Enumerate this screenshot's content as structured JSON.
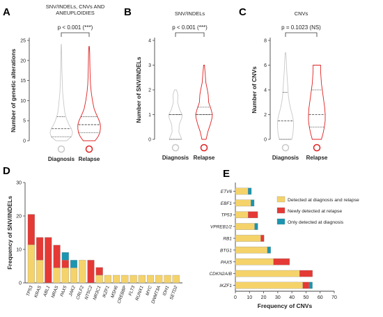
{
  "colors": {
    "diagnosis": "#c8c8c8",
    "relapse": "#e02020",
    "both": "#f5d36a",
    "new": "#e53935",
    "only_dx": "#1b95b0",
    "axis": "#444444"
  },
  "chart_data": [
    {
      "id": "A",
      "type": "violin",
      "panel_label": "A",
      "title": "SNV/INDELs, CNVs AND\nANEUPLOIDIES",
      "pvalue": "p < 0.001 (***)",
      "ylabel": "Number of genetic alterations",
      "ylim": [
        0,
        25
      ],
      "yticks": [
        0,
        5,
        10,
        15,
        20,
        25
      ],
      "groups": [
        "Diagnosis",
        "Relapse"
      ],
      "violins": [
        {
          "group": "Diagnosis",
          "ymax": 24,
          "median": 3,
          "q1": 1,
          "q3": 6,
          "profile": [
            [
              0,
              0.45
            ],
            [
              1,
              0.85
            ],
            [
              2,
              0.95
            ],
            [
              3,
              0.85
            ],
            [
              4,
              0.65
            ],
            [
              5,
              0.5
            ],
            [
              6,
              0.38
            ],
            [
              7,
              0.3
            ],
            [
              8,
              0.25
            ],
            [
              10,
              0.18
            ],
            [
              12,
              0.12
            ],
            [
              14,
              0.09
            ],
            [
              16,
              0.07
            ],
            [
              18,
              0.05
            ],
            [
              20,
              0.04
            ],
            [
              22,
              0.03
            ],
            [
              24,
              0.01
            ]
          ]
        },
        {
          "group": "Relapse",
          "ymax": 23.5,
          "median": 4,
          "q1": 2,
          "q3": 6,
          "profile": [
            [
              0,
              0.5
            ],
            [
              1,
              0.75
            ],
            [
              2,
              0.9
            ],
            [
              3,
              0.95
            ],
            [
              4,
              0.95
            ],
            [
              5,
              0.85
            ],
            [
              6,
              0.7
            ],
            [
              7,
              0.55
            ],
            [
              8,
              0.42
            ],
            [
              10,
              0.28
            ],
            [
              12,
              0.18
            ],
            [
              14,
              0.12
            ],
            [
              16,
              0.09
            ],
            [
              18,
              0.07
            ],
            [
              20,
              0.06
            ],
            [
              22,
              0.05
            ],
            [
              23.5,
              0.02
            ]
          ]
        }
      ]
    },
    {
      "id": "B",
      "type": "violin",
      "panel_label": "B",
      "title": "SNV/INDELs",
      "pvalue": "p < 0.001 (***)",
      "ylabel": "Number of SNV/INDELs",
      "ylim": [
        0,
        4
      ],
      "yticks": [
        0,
        1,
        2,
        3,
        4
      ],
      "groups": [
        "Diagnosis",
        "Relapse"
      ],
      "violins": [
        {
          "group": "Diagnosis",
          "ymax": 2,
          "median": 1,
          "q1": 0,
          "q3": 1,
          "profile": [
            [
              0,
              0.75
            ],
            [
              0.3,
              0.4
            ],
            [
              0.6,
              0.45
            ],
            [
              0.85,
              0.75
            ],
            [
              1,
              0.8
            ],
            [
              1.2,
              0.5
            ],
            [
              1.5,
              0.25
            ],
            [
              1.8,
              0.3
            ],
            [
              2,
              0.12
            ]
          ]
        },
        {
          "group": "Relapse",
          "ymax": 3,
          "median": 1,
          "q1": 1,
          "q3": 1.3,
          "profile": [
            [
              0,
              0.25
            ],
            [
              0.3,
              0.45
            ],
            [
              0.6,
              0.75
            ],
            [
              0.85,
              0.95
            ],
            [
              1,
              1.0
            ],
            [
              1.2,
              0.85
            ],
            [
              1.5,
              0.55
            ],
            [
              1.8,
              0.5
            ],
            [
              2,
              0.4
            ],
            [
              2.3,
              0.22
            ],
            [
              2.6,
              0.15
            ],
            [
              3,
              0.05
            ]
          ]
        }
      ]
    },
    {
      "id": "C",
      "type": "violin",
      "panel_label": "C",
      "title": "CNVs",
      "pvalue": "p = 0.1023 (NS)",
      "ylabel": "Number of CNVs",
      "ylim": [
        0,
        8
      ],
      "yticks": [
        0,
        2,
        4,
        6,
        8
      ],
      "groups": [
        "Diagnosis",
        "Relapse"
      ],
      "violins": [
        {
          "group": "Diagnosis",
          "ymax": 7,
          "median": 1.5,
          "q1": 0,
          "q3": 3.8,
          "profile": [
            [
              0,
              0.75
            ],
            [
              0.5,
              0.9
            ],
            [
              1,
              0.95
            ],
            [
              1.5,
              0.95
            ],
            [
              2,
              0.8
            ],
            [
              2.5,
              0.6
            ],
            [
              3,
              0.45
            ],
            [
              3.5,
              0.35
            ],
            [
              4,
              0.3
            ],
            [
              4.5,
              0.25
            ],
            [
              5,
              0.2
            ],
            [
              5.5,
              0.15
            ],
            [
              6,
              0.12
            ],
            [
              6.5,
              0.08
            ],
            [
              7,
              0.04
            ]
          ]
        },
        {
          "group": "Relapse",
          "ymax": 6,
          "median": 2,
          "q1": 1,
          "q3": 4,
          "profile": [
            [
              0,
              0.55
            ],
            [
              0.5,
              0.75
            ],
            [
              1,
              0.9
            ],
            [
              1.5,
              1.0
            ],
            [
              2,
              1.0
            ],
            [
              2.5,
              0.95
            ],
            [
              3,
              0.85
            ],
            [
              3.5,
              0.75
            ],
            [
              4,
              0.65
            ],
            [
              4.5,
              0.55
            ],
            [
              5,
              0.5
            ],
            [
              5.5,
              0.45
            ],
            [
              6,
              0.45
            ]
          ]
        }
      ]
    },
    {
      "id": "D",
      "type": "bar",
      "stacked": true,
      "panel_label": "D",
      "ylabel": "Frequency of SNV/INDELs",
      "ylim": [
        0,
        30
      ],
      "yticks": [
        0,
        10,
        20,
        30
      ],
      "categories": [
        "TP53",
        "KRAS",
        "ABL1",
        "NRAS",
        "PAX5",
        "JAK2",
        "CRLF2",
        "NT5C2",
        "NR3C1",
        "IKZF1",
        "MSH6",
        "CREBBP",
        "FLT3",
        "RUNX1",
        "MYC",
        "DNMT3A",
        "IDH1",
        "SETD2"
      ],
      "series": [
        {
          "key": "both",
          "values": [
            11.4,
            6.8,
            0,
            4.5,
            4.5,
            4.5,
            6.8,
            0,
            2.3,
            2.3,
            2.3,
            2.3,
            2.3,
            2.3,
            2.3,
            2.3,
            2.3,
            2.3
          ]
        },
        {
          "key": "new",
          "values": [
            9.1,
            6.8,
            13.6,
            6.8,
            2.3,
            0,
            0,
            6.8,
            2.3,
            0,
            0,
            0,
            0,
            0,
            0,
            0,
            0,
            0
          ]
        },
        {
          "key": "only_dx",
          "values": [
            0,
            0,
            0,
            0,
            2.3,
            2.3,
            0,
            0,
            0,
            0,
            0,
            0,
            0,
            0,
            0,
            0,
            0,
            0
          ]
        }
      ]
    },
    {
      "id": "E",
      "type": "bar",
      "orientation": "horizontal",
      "stacked": true,
      "panel_label": "E",
      "xlabel": "Frequency of CNVs",
      "xlim": [
        0,
        70
      ],
      "xticks": [
        0,
        10,
        20,
        30,
        40,
        50,
        60,
        70
      ],
      "categories": [
        "ETV6",
        "EBF1",
        "TP53",
        "VPREB1/2",
        "RB1",
        "BTG1",
        "PAX5",
        "CDKN2A/B",
        "IKZF1"
      ],
      "series": [
        {
          "key": "both",
          "values": [
            9,
            11,
            9,
            13.6,
            18,
            22.7,
            27,
            45.5,
            47.7
          ]
        },
        {
          "key": "new",
          "values": [
            0,
            0,
            6.8,
            0,
            2.3,
            0,
            11.4,
            9.1,
            4.5
          ]
        },
        {
          "key": "only_dx",
          "values": [
            2.3,
            2.3,
            0,
            2.3,
            0,
            2.3,
            0,
            0,
            2.3
          ]
        }
      ],
      "legend": {
        "position": "top-right",
        "entries": [
          {
            "key": "both",
            "label": "Detected at diagnosis and relapse"
          },
          {
            "key": "new",
            "label": "Newly detected at relapse"
          },
          {
            "key": "only_dx",
            "label": "Only detected at diagnosis"
          }
        ]
      }
    }
  ]
}
